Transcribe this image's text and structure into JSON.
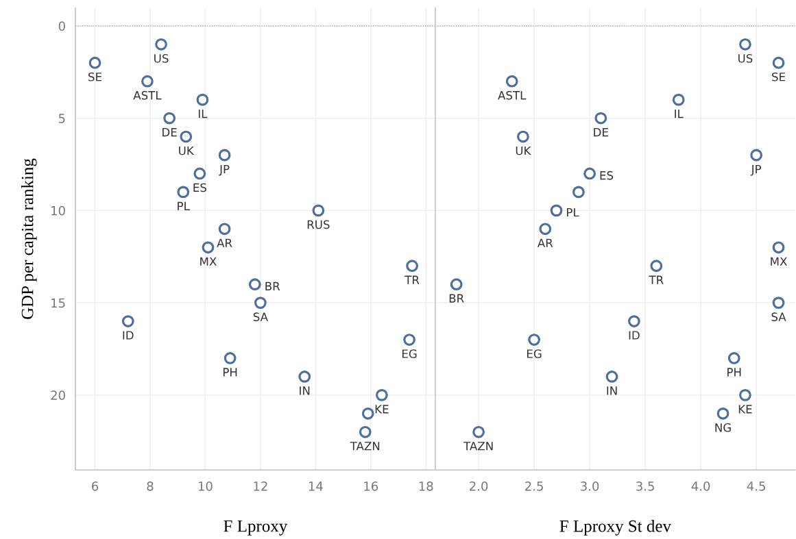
{
  "chart_data": [
    {
      "type": "scatter",
      "xlabel": "F Lproxy",
      "ylabel": "GDP per capita ranking",
      "xlim": [
        5.29,
        18.34
      ],
      "ylim": [
        24.05,
        -0.96
      ],
      "xticks": [
        6,
        8,
        10,
        12,
        14,
        16,
        18
      ],
      "yticks": [
        0,
        5,
        10,
        15,
        20
      ],
      "grid": true,
      "marker": "circle",
      "ref_lines": [
        {
          "axis": "y",
          "value": 0,
          "color": "#999999",
          "line_style": "dotted"
        }
      ],
      "series": [
        {
          "color": "#4e6f9e",
          "x": [
            8.4,
            6.0,
            7.9,
            9.9,
            8.7,
            9.3,
            10.7,
            9.8,
            9.2,
            14.1,
            10.7,
            10.1,
            17.5,
            11.8,
            12.0,
            7.2,
            17.4,
            10.9,
            13.6,
            16.4,
            15.9,
            15.8
          ],
          "values": [
            1,
            2,
            3,
            4,
            5,
            6,
            7,
            8,
            9,
            10,
            11,
            12,
            13,
            14,
            15,
            16,
            17,
            18,
            19,
            20,
            21,
            22
          ]
        }
      ],
      "annotations": [
        {
          "text": "US",
          "x": 8.4,
          "y": 1
        },
        {
          "text": "SE",
          "x": 6.0,
          "y": 2
        },
        {
          "text": "ASTL",
          "x": 7.9,
          "y": 3
        },
        {
          "text": "IL",
          "x": 9.9,
          "y": 4
        },
        {
          "text": "DE",
          "x": 8.7,
          "y": 5
        },
        {
          "text": "UK",
          "x": 9.3,
          "y": 6
        },
        {
          "text": "JP",
          "x": 10.7,
          "y": 7
        },
        {
          "text": "ES",
          "x": 9.8,
          "y": 8
        },
        {
          "text": "PL",
          "x": 9.2,
          "y": 9
        },
        {
          "text": "RUS",
          "x": 14.1,
          "y": 10
        },
        {
          "text": "AR",
          "x": 10.7,
          "y": 11
        },
        {
          "text": "MX",
          "x": 10.1,
          "y": 12
        },
        {
          "text": "TR",
          "x": 17.5,
          "y": 13
        },
        {
          "text": "BR",
          "x": 11.8,
          "y": 14
        },
        {
          "text": "SA",
          "x": 12.0,
          "y": 15
        },
        {
          "text": "ID",
          "x": 7.2,
          "y": 16
        },
        {
          "text": "EG",
          "x": 17.4,
          "y": 17
        },
        {
          "text": "PH",
          "x": 10.9,
          "y": 18
        },
        {
          "text": "IN",
          "x": 13.6,
          "y": 19
        },
        {
          "text": "KE",
          "x": 16.4,
          "y": 20
        },
        {
          "text": "TAZN",
          "x": 15.8,
          "y": 22
        }
      ]
    },
    {
      "type": "scatter",
      "xlabel": "F Lproxy St dev",
      "xlim": [
        1.61,
        4.85
      ],
      "ylim": [
        24.05,
        -0.96
      ],
      "xticks": [
        {
          "value": 2.0,
          "label": "2.0"
        },
        {
          "value": 2.5,
          "label": "2.5"
        },
        {
          "value": 3.0,
          "label": "3.0"
        },
        {
          "value": 3.5,
          "label": "3.5"
        },
        {
          "value": 4.0,
          "label": "4.0"
        },
        {
          "value": 4.5,
          "label": "4.5"
        }
      ],
      "yticks": [
        0,
        5,
        10,
        15,
        20
      ],
      "tick_labels": "x",
      "grid": true,
      "marker": "circle",
      "ref_lines": [
        {
          "axis": "y",
          "value": 0,
          "color": "#999999",
          "line_style": "dotted"
        }
      ],
      "series": [
        {
          "color": "#4e6f9e",
          "x": [
            4.4,
            4.7,
            2.3,
            3.8,
            3.1,
            2.4,
            4.5,
            3.0,
            2.9,
            2.7,
            2.6,
            4.7,
            3.6,
            1.8,
            4.7,
            3.4,
            2.5,
            4.3,
            3.2,
            4.4,
            4.2,
            2.0
          ],
          "values": [
            1,
            2,
            3,
            4,
            5,
            6,
            7,
            8,
            9,
            10,
            11,
            12,
            13,
            14,
            15,
            16,
            17,
            18,
            19,
            20,
            21,
            22
          ]
        }
      ],
      "annotations": [
        {
          "text": "US",
          "x": 4.4,
          "y": 1
        },
        {
          "text": "SE",
          "x": 4.7,
          "y": 2
        },
        {
          "text": "ASTL",
          "x": 2.3,
          "y": 3
        },
        {
          "text": "IL",
          "x": 3.8,
          "y": 4
        },
        {
          "text": "DE",
          "x": 3.1,
          "y": 5
        },
        {
          "text": "UK",
          "x": 2.4,
          "y": 6
        },
        {
          "text": "JP",
          "x": 4.5,
          "y": 7
        },
        {
          "text": "ES",
          "x": 3.0,
          "y": 8
        },
        {
          "text": "PL",
          "x": 2.7,
          "y": 10
        },
        {
          "text": "AR",
          "x": 2.6,
          "y": 11
        },
        {
          "text": "MX",
          "x": 4.7,
          "y": 12
        },
        {
          "text": "TR",
          "x": 3.6,
          "y": 13
        },
        {
          "text": "BR",
          "x": 1.8,
          "y": 14
        },
        {
          "text": "SA",
          "x": 4.7,
          "y": 15
        },
        {
          "text": "ID",
          "x": 3.4,
          "y": 16
        },
        {
          "text": "EG",
          "x": 2.5,
          "y": 17
        },
        {
          "text": "PH",
          "x": 4.3,
          "y": 18
        },
        {
          "text": "IN",
          "x": 3.2,
          "y": 19
        },
        {
          "text": "KE",
          "x": 4.4,
          "y": 20
        },
        {
          "text": "NG",
          "x": 4.2,
          "y": 21
        },
        {
          "text": "TAZN",
          "x": 2.0,
          "y": 22
        }
      ]
    }
  ]
}
